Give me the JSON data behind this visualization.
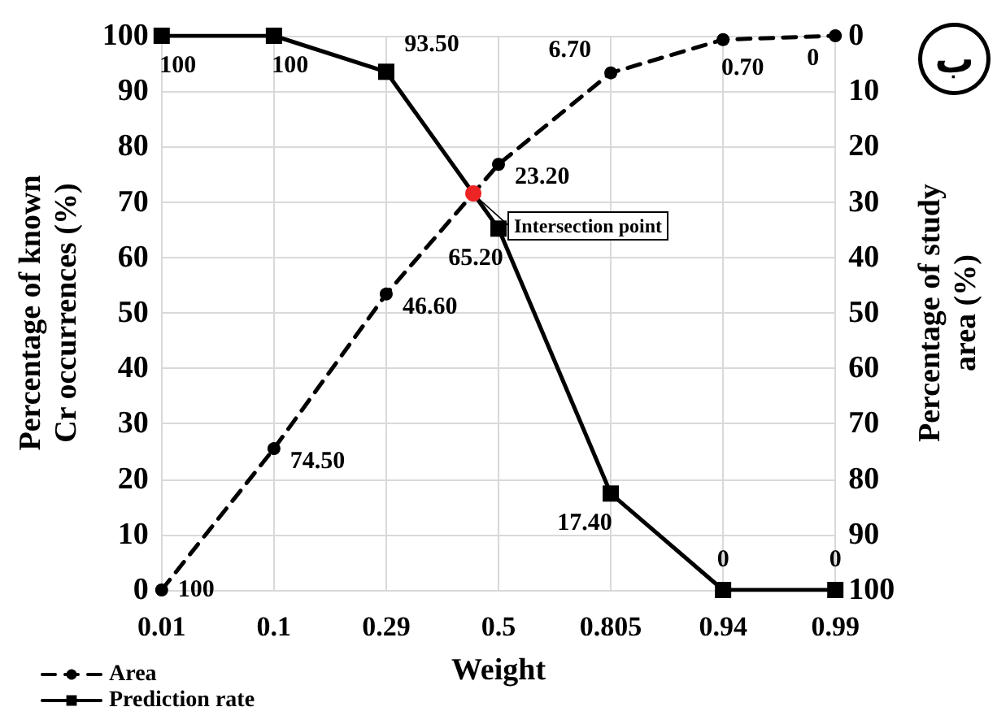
{
  "chart_data": {
    "type": "line",
    "xlabel": "Weight",
    "ylabel": "Percentage of known\nCr occurrences (%)",
    "y2label": "Percentage of study\narea (%)",
    "categories": [
      "0.01",
      "0.1",
      "0.29",
      "0.5",
      "0.805",
      "0.94",
      "0.99"
    ],
    "series": [
      {
        "name": "Area",
        "color": "#000000",
        "axis": "y2",
        "marker": "circle",
        "line_style": "dashed",
        "values": [
          100,
          74.5,
          46.6,
          23.2,
          6.7,
          0.7,
          0
        ],
        "value_labels": [
          "100",
          "74.50",
          "46.60",
          "23.20",
          "6.70",
          "0.70",
          "0"
        ]
      },
      {
        "name": "Prediction rate",
        "color": "#000000",
        "marker": "square",
        "line_style": "solid",
        "values": [
          100,
          100,
          93.5,
          65.2,
          17.4,
          0,
          0
        ],
        "value_labels": [
          "100",
          "100",
          "93.50",
          "65.20",
          "17.40",
          "0",
          "0"
        ]
      }
    ],
    "ylim": [
      0,
      100
    ],
    "yticks": [
      0,
      10,
      20,
      30,
      40,
      50,
      60,
      70,
      80,
      90,
      100
    ],
    "y2lim": [
      100,
      0
    ],
    "y2ticks": [
      0,
      10,
      20,
      30,
      40,
      50,
      60,
      70,
      80,
      90,
      100
    ],
    "annotations": [
      "Intersection point",
      "ب"
    ],
    "grid": true,
    "legend": "bottom left"
  }
}
